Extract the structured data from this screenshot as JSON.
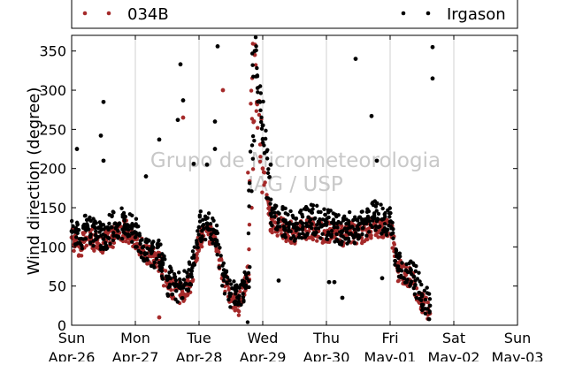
{
  "chart_data": {
    "type": "scatter",
    "ylabel": "Wind direction (degree)",
    "ylim": [
      0,
      370
    ],
    "yticks": [
      0,
      50,
      100,
      150,
      200,
      250,
      300,
      350
    ],
    "xlim": [
      "2014-04-26T00:00",
      "2014-05-03T00:00"
    ],
    "xticks": [
      {
        "value": "2014-04-26T00:00",
        "day": "Sun",
        "date": "Apr-26"
      },
      {
        "value": "2014-04-27T00:00",
        "day": "Mon",
        "date": "Apr-27"
      },
      {
        "value": "2014-04-28T00:00",
        "day": "Tue",
        "date": "Apr-28"
      },
      {
        "value": "2014-04-29T00:00",
        "day": "Wed",
        "date": "Apr-29"
      },
      {
        "value": "2014-04-30T00:00",
        "day": "Thu",
        "date": "Apr-30"
      },
      {
        "value": "2014-05-01T00:00",
        "day": "Fri",
        "date": "May-01"
      },
      {
        "value": "2014-05-02T00:00",
        "day": "Sat",
        "date": "May-02"
      },
      {
        "value": "2014-05-03T00:00",
        "day": "Sun",
        "date": "May-03"
      }
    ],
    "grid": true,
    "legend_position": "top",
    "watermark": [
      "Grupo de Micrometeorologia",
      "IAG / USP"
    ],
    "series": [
      {
        "name": "034B",
        "color": "#a52a2a",
        "values": [
          [
            "2014-04-26T00:00",
            112
          ],
          [
            "2014-04-26T03:00",
            100
          ],
          [
            "2014-04-26T06:00",
            110
          ],
          [
            "2014-04-26T09:00",
            108
          ],
          [
            "2014-04-26T12:00",
            105
          ],
          [
            "2014-04-26T15:00",
            112
          ],
          [
            "2014-04-26T18:00",
            118
          ],
          [
            "2014-04-26T21:00",
            120
          ],
          [
            "2014-04-27T00:00",
            112
          ],
          [
            "2014-04-27T03:00",
            95
          ],
          [
            "2014-04-27T06:00",
            88
          ],
          [
            "2014-04-27T09:00",
            82
          ],
          [
            "2014-04-27T12:00",
            50
          ],
          [
            "2014-04-27T15:00",
            45
          ],
          [
            "2014-04-27T18:00",
            40
          ],
          [
            "2014-04-27T21:00",
            55
          ],
          [
            "2014-04-28T00:00",
            110
          ],
          [
            "2014-04-28T03:00",
            120
          ],
          [
            "2014-04-28T06:00",
            112
          ],
          [
            "2014-04-28T09:00",
            60
          ],
          [
            "2014-04-28T12:00",
            35
          ],
          [
            "2014-04-28T15:00",
            25
          ],
          [
            "2014-04-28T18:00",
            55
          ],
          [
            "2014-04-28T21:00",
            345
          ],
          [
            "2014-04-29T00:00",
            200
          ],
          [
            "2014-04-29T03:00",
            130
          ],
          [
            "2014-04-29T06:00",
            125
          ],
          [
            "2014-04-29T09:00",
            120
          ],
          [
            "2014-04-29T12:00",
            118
          ],
          [
            "2014-04-29T15:00",
            122
          ],
          [
            "2014-04-29T18:00",
            125
          ],
          [
            "2014-04-29T21:00",
            120
          ],
          [
            "2014-04-30T00:00",
            118
          ],
          [
            "2014-04-30T03:00",
            120
          ],
          [
            "2014-04-30T06:00",
            115
          ],
          [
            "2014-04-30T09:00",
            118
          ],
          [
            "2014-04-30T12:00",
            115
          ],
          [
            "2014-04-30T15:00",
            122
          ],
          [
            "2014-04-30T18:00",
            125
          ],
          [
            "2014-04-30T21:00",
            125
          ],
          [
            "2014-05-01T00:00",
            128
          ],
          [
            "2014-05-01T03:00",
            70
          ],
          [
            "2014-05-01T06:00",
            65
          ],
          [
            "2014-05-01T09:00",
            55
          ],
          [
            "2014-05-01T12:00",
            30
          ],
          [
            "2014-05-01T15:00",
            15
          ]
        ]
      },
      {
        "name": "Irgason",
        "color": "#000000",
        "values": [
          [
            "2014-04-26T00:00",
            120
          ],
          [
            "2014-04-26T03:00",
            110
          ],
          [
            "2014-04-26T06:00",
            125
          ],
          [
            "2014-04-26T09:00",
            115
          ],
          [
            "2014-04-26T12:00",
            110
          ],
          [
            "2014-04-26T15:00",
            125
          ],
          [
            "2014-04-26T18:00",
            130
          ],
          [
            "2014-04-26T21:00",
            128
          ],
          [
            "2014-04-27T00:00",
            118
          ],
          [
            "2014-04-27T03:00",
            100
          ],
          [
            "2014-04-27T06:00",
            92
          ],
          [
            "2014-04-27T09:00",
            88
          ],
          [
            "2014-04-27T12:00",
            58
          ],
          [
            "2014-04-27T15:00",
            50
          ],
          [
            "2014-04-27T18:00",
            48
          ],
          [
            "2014-04-27T21:00",
            65
          ],
          [
            "2014-04-28T00:00",
            125
          ],
          [
            "2014-04-28T03:00",
            130
          ],
          [
            "2014-04-28T06:00",
            120
          ],
          [
            "2014-04-28T09:00",
            65
          ],
          [
            "2014-04-28T12:00",
            40
          ],
          [
            "2014-04-28T15:00",
            30
          ],
          [
            "2014-04-28T18:00",
            60
          ],
          [
            "2014-04-28T21:00",
            350
          ],
          [
            "2014-04-29T00:00",
            255
          ],
          [
            "2014-04-29T03:00",
            142
          ],
          [
            "2014-04-29T06:00",
            135
          ],
          [
            "2014-04-29T09:00",
            130
          ],
          [
            "2014-04-29T12:00",
            125
          ],
          [
            "2014-04-29T15:00",
            130
          ],
          [
            "2014-04-29T18:00",
            135
          ],
          [
            "2014-04-29T21:00",
            132
          ],
          [
            "2014-04-30T00:00",
            128
          ],
          [
            "2014-04-30T03:00",
            125
          ],
          [
            "2014-04-30T06:00",
            120
          ],
          [
            "2014-04-30T09:00",
            125
          ],
          [
            "2014-04-30T12:00",
            122
          ],
          [
            "2014-04-30T15:00",
            130
          ],
          [
            "2014-04-30T18:00",
            140
          ],
          [
            "2014-04-30T21:00",
            135
          ],
          [
            "2014-05-01T00:00",
            132
          ],
          [
            "2014-05-01T03:00",
            75
          ],
          [
            "2014-05-01T06:00",
            70
          ],
          [
            "2014-05-01T09:00",
            62
          ],
          [
            "2014-05-01T12:00",
            38
          ],
          [
            "2014-05-01T15:00",
            25
          ]
        ]
      }
    ],
    "outliers": {
      "034B": [
        [
          "2014-04-27T18:00",
          265
        ],
        [
          "2014-04-28T09:00",
          300
        ],
        [
          "2014-04-27T09:00",
          10
        ]
      ],
      "Irgason": [
        [
          "2014-04-26T02:00",
          225
        ],
        [
          "2014-04-26T12:00",
          285
        ],
        [
          "2014-04-26T11:00",
          242
        ],
        [
          "2014-04-26T12:00",
          210
        ],
        [
          "2014-04-27T04:00",
          190
        ],
        [
          "2014-04-27T09:00",
          237
        ],
        [
          "2014-04-27T17:00",
          333
        ],
        [
          "2014-04-27T18:00",
          287
        ],
        [
          "2014-04-27T16:00",
          262
        ],
        [
          "2014-04-27T22:00",
          206
        ],
        [
          "2014-04-28T03:00",
          205
        ],
        [
          "2014-04-28T06:00",
          225
        ],
        [
          "2014-04-28T06:00",
          260
        ],
        [
          "2014-04-28T07:00",
          356
        ],
        [
          "2014-04-28T23:00",
          285
        ],
        [
          "2014-04-29T03:00",
          205
        ],
        [
          "2014-04-29T06:00",
          57
        ],
        [
          "2014-04-30T01:00",
          55
        ],
        [
          "2014-04-30T03:00",
          55
        ],
        [
          "2014-04-30T11:00",
          340
        ],
        [
          "2014-04-30T17:00",
          267
        ],
        [
          "2014-04-30T19:00",
          210
        ],
        [
          "2014-05-01T16:00",
          355
        ],
        [
          "2014-05-01T16:00",
          315
        ],
        [
          "2014-04-30T06:00",
          35
        ],
        [
          "2014-04-30T21:00",
          60
        ]
      ]
    }
  }
}
